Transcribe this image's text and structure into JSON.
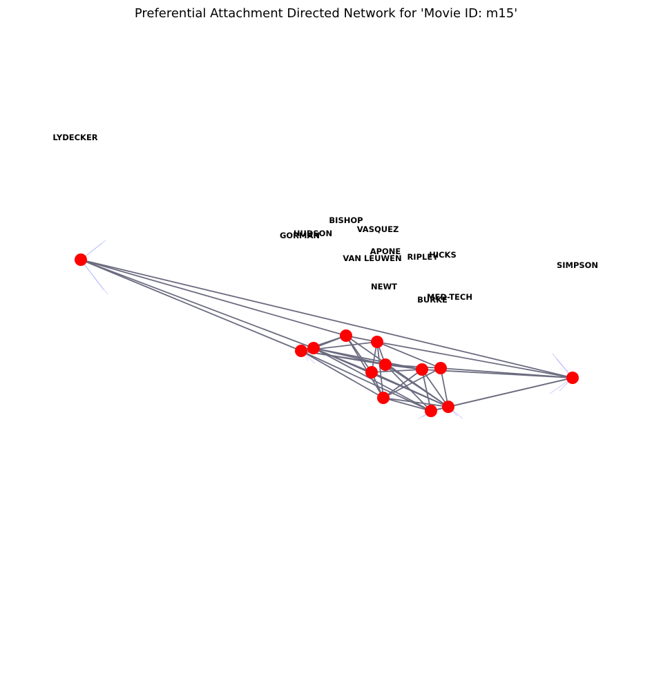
{
  "title": "Preferential Attachment Directed Network for 'Movie ID: m15'",
  "colors": {
    "node": "#ff0000",
    "edge": "#6b6b80",
    "arrow": "#8080ff",
    "label": "#000000"
  },
  "labels": [
    "LYDECKER",
    "BISHOP",
    "VASQUEZ",
    "HUDSON",
    "GORMAN",
    "APONE",
    "VAN LEUWEN",
    "RIPLEY",
    "HICKS",
    "SIMPSON",
    "NEWT",
    "MED-TECH",
    "BURKE"
  ]
}
